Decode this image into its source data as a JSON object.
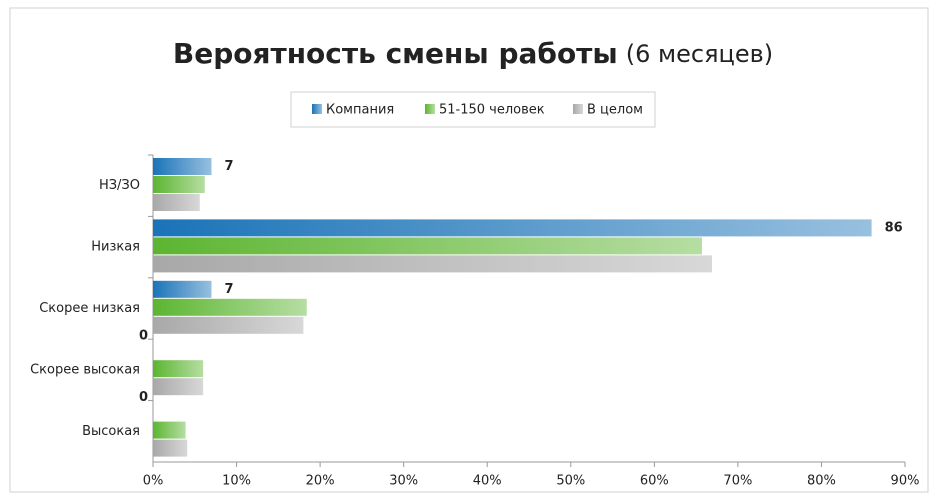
{
  "chart_data": {
    "type": "bar",
    "orientation": "horizontal",
    "title": "Вероятность смены работы",
    "subtitle": "(6 месяцев)",
    "categories": [
      "НЗ/ЗО",
      "Низкая",
      "Скорее низкая",
      "Скорее высокая",
      "Высокая"
    ],
    "series": [
      {
        "name": "Компания",
        "color": "#1a73b8",
        "values": [
          7,
          86,
          7,
          0,
          0
        ]
      },
      {
        "name": "51-150 человек",
        "color": "#5cb531",
        "values": [
          6.2,
          65.7,
          18.4,
          6,
          3.9
        ]
      },
      {
        "name": "В целом",
        "color": "#a8a8a8",
        "values": [
          5.6,
          66.9,
          18,
          6,
          4.1
        ]
      }
    ],
    "data_labels_series": 0,
    "xlim": [
      0,
      90
    ],
    "xticks": [
      {
        "value": 0,
        "label": "0%"
      },
      {
        "value": 10,
        "label": "10%"
      },
      {
        "value": 20,
        "label": "20%"
      },
      {
        "value": 30,
        "label": "30%"
      },
      {
        "value": 40,
        "label": "40%"
      },
      {
        "value": 50,
        "label": "50%"
      },
      {
        "value": 60,
        "label": "60%"
      },
      {
        "value": 70,
        "label": "70%"
      },
      {
        "value": 80,
        "label": "80%"
      },
      {
        "value": 90,
        "label": "90%"
      }
    ],
    "legend": "top",
    "grid": false
  }
}
